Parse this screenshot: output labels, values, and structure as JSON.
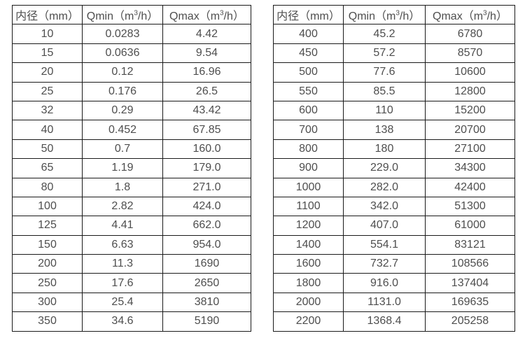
{
  "colors": {
    "background": "#ffffff",
    "border": "#1a1a1a",
    "text": "#4e4e4e"
  },
  "header_display": {
    "diameter": "内径（mm）",
    "sup": "3",
    "qmin": {
      "pre": "Qmin（m",
      "post": "/h）"
    },
    "qmax": {
      "pre": "Qmax（m",
      "post": "/h）"
    }
  },
  "chart_data": [
    {
      "type": "table",
      "columns": [
        "内径（mm）",
        "Qmin（m³/h）",
        "Qmax（m³/h）"
      ],
      "rows": [
        [
          "10",
          "0.0283",
          "4.42"
        ],
        [
          "15",
          "0.0636",
          "9.54"
        ],
        [
          "20",
          "0.12",
          "16.96"
        ],
        [
          "25",
          "0.176",
          "26.5"
        ],
        [
          "32",
          "0.29",
          "43.42"
        ],
        [
          "40",
          "0.452",
          "67.85"
        ],
        [
          "50",
          "0.7",
          "160.0"
        ],
        [
          "65",
          "1.19",
          "179.0"
        ],
        [
          "80",
          "1.8",
          "271.0"
        ],
        [
          "100",
          "2.82",
          "424.0"
        ],
        [
          "125",
          "4.41",
          "662.0"
        ],
        [
          "150",
          "6.63",
          "954.0"
        ],
        [
          "200",
          "11.3",
          "1690"
        ],
        [
          "250",
          "17.6",
          "2650"
        ],
        [
          "300",
          "25.4",
          "3810"
        ],
        [
          "350",
          "34.6",
          "5190"
        ]
      ]
    },
    {
      "type": "table",
      "columns": [
        "内径（mm）",
        "Qmin（m³/h）",
        "Qmax（m³/h）"
      ],
      "rows": [
        [
          "400",
          "45.2",
          "6780"
        ],
        [
          "450",
          "57.2",
          "8570"
        ],
        [
          "500",
          "77.6",
          "10600"
        ],
        [
          "550",
          "85.5",
          "12800"
        ],
        [
          "600",
          "110",
          "15200"
        ],
        [
          "700",
          "138",
          "20700"
        ],
        [
          "800",
          "180",
          "27100"
        ],
        [
          "900",
          "229.0",
          "34300"
        ],
        [
          "1000",
          "282.0",
          "42400"
        ],
        [
          "1100",
          "342.0",
          "51300"
        ],
        [
          "1200",
          "407.0",
          "61000"
        ],
        [
          "1400",
          "554.1",
          "83121"
        ],
        [
          "1600",
          "732.7",
          "108566"
        ],
        [
          "1800",
          "916.0",
          "137404"
        ],
        [
          "2000",
          "1131.0",
          "169635"
        ],
        [
          "2200",
          "1368.4",
          "205258"
        ]
      ]
    }
  ]
}
